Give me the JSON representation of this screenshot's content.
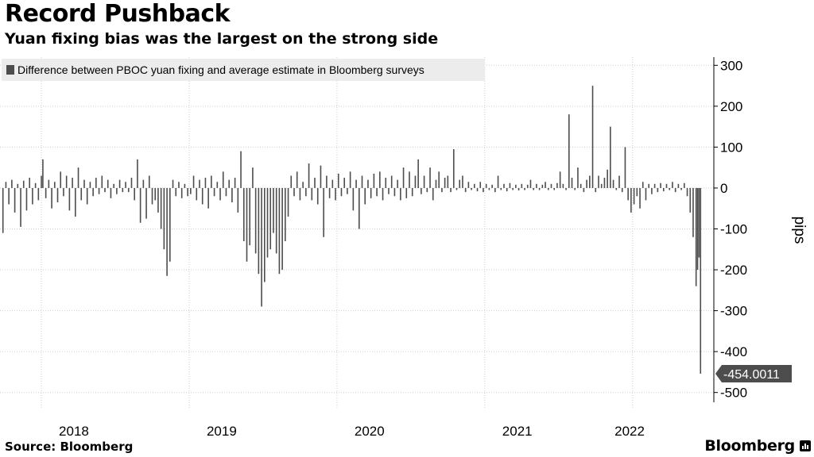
{
  "header": {
    "title": "Record Pushback",
    "subtitle": "Yuan fixing bias was the largest on the strong side"
  },
  "footer": {
    "source": "Source: Bloomberg",
    "brand": "Bloomberg"
  },
  "chart_data": {
    "type": "bar",
    "title": "Record Pushback",
    "subtitle": "Yuan fixing bias was the largest on the strong side",
    "xlabel": "",
    "ylabel": "pips",
    "ylim": [
      -520,
      320
    ],
    "yticks": [
      300,
      200,
      100,
      0,
      -100,
      -200,
      -300,
      -400,
      -500
    ],
    "xlim": [
      2017.72,
      2022.55
    ],
    "xticks": [
      {
        "label": "2018",
        "value": 2018.0
      },
      {
        "label": "2019",
        "value": 2019.0
      },
      {
        "label": "2020",
        "value": 2020.0
      },
      {
        "label": "2021",
        "value": 2021.0
      },
      {
        "label": "2022",
        "value": 2022.0
      }
    ],
    "legend": {
      "position": "top-left",
      "entries": [
        "Difference between PBOC yuan fixing and average estimate in Bloomberg surveys"
      ]
    },
    "last_value_label": "-454.0011",
    "grid": true,
    "series": [
      {
        "name": "Difference between PBOC yuan fixing and average estimate in Bloomberg surveys",
        "color": "#4d4d4d",
        "points": [
          [
            2017.74,
            -110
          ],
          [
            2017.76,
            15
          ],
          [
            2017.78,
            -40
          ],
          [
            2017.8,
            20
          ],
          [
            2017.82,
            -60
          ],
          [
            2017.84,
            10
          ],
          [
            2017.86,
            -95
          ],
          [
            2017.88,
            18
          ],
          [
            2017.9,
            -55
          ],
          [
            2017.92,
            25
          ],
          [
            2017.94,
            -40
          ],
          [
            2017.96,
            12
          ],
          [
            2017.98,
            -30
          ],
          [
            2018.0,
            30
          ],
          [
            2018.01,
            70
          ],
          [
            2018.03,
            -25
          ],
          [
            2018.05,
            20
          ],
          [
            2018.07,
            -50
          ],
          [
            2018.09,
            15
          ],
          [
            2018.11,
            -35
          ],
          [
            2018.13,
            40
          ],
          [
            2018.15,
            -20
          ],
          [
            2018.17,
            30
          ],
          [
            2018.19,
            -55
          ],
          [
            2018.21,
            25
          ],
          [
            2018.23,
            -70
          ],
          [
            2018.25,
            50
          ],
          [
            2018.27,
            -30
          ],
          [
            2018.29,
            20
          ],
          [
            2018.31,
            -40
          ],
          [
            2018.33,
            15
          ],
          [
            2018.35,
            -20
          ],
          [
            2018.37,
            25
          ],
          [
            2018.39,
            -15
          ],
          [
            2018.41,
            30
          ],
          [
            2018.43,
            -10
          ],
          [
            2018.45,
            20
          ],
          [
            2018.47,
            -25
          ],
          [
            2018.49,
            10
          ],
          [
            2018.51,
            -15
          ],
          [
            2018.53,
            20
          ],
          [
            2018.55,
            -10
          ],
          [
            2018.57,
            15
          ],
          [
            2018.59,
            -10
          ],
          [
            2018.61,
            25
          ],
          [
            2018.63,
            -30
          ],
          [
            2018.65,
            70
          ],
          [
            2018.67,
            -85
          ],
          [
            2018.69,
            20
          ],
          [
            2018.71,
            -75
          ],
          [
            2018.73,
            30
          ],
          [
            2018.75,
            -40
          ],
          [
            2018.77,
            -30
          ],
          [
            2018.79,
            -60
          ],
          [
            2018.81,
            -100
          ],
          [
            2018.83,
            -150
          ],
          [
            2018.85,
            -215
          ],
          [
            2018.87,
            -180
          ],
          [
            2018.89,
            20
          ],
          [
            2018.91,
            -20
          ],
          [
            2018.93,
            15
          ],
          [
            2018.95,
            -25
          ],
          [
            2018.97,
            10
          ],
          [
            2018.99,
            -20
          ],
          [
            2019.01,
            -15
          ],
          [
            2019.03,
            30
          ],
          [
            2019.05,
            -30
          ],
          [
            2019.07,
            20
          ],
          [
            2019.09,
            -40
          ],
          [
            2019.11,
            25
          ],
          [
            2019.13,
            -50
          ],
          [
            2019.15,
            30
          ],
          [
            2019.17,
            -20
          ],
          [
            2019.19,
            15
          ],
          [
            2019.21,
            -30
          ],
          [
            2019.23,
            40
          ],
          [
            2019.25,
            -20
          ],
          [
            2019.27,
            20
          ],
          [
            2019.29,
            -35
          ],
          [
            2019.31,
            25
          ],
          [
            2019.33,
            -60
          ],
          [
            2019.35,
            90
          ],
          [
            2019.37,
            -130
          ],
          [
            2019.39,
            -180
          ],
          [
            2019.41,
            -140
          ],
          [
            2019.43,
            50
          ],
          [
            2019.45,
            -160
          ],
          [
            2019.47,
            -210
          ],
          [
            2019.49,
            -290
          ],
          [
            2019.51,
            -230
          ],
          [
            2019.53,
            -170
          ],
          [
            2019.55,
            -150
          ],
          [
            2019.57,
            -110
          ],
          [
            2019.59,
            -160
          ],
          [
            2019.61,
            -210
          ],
          [
            2019.63,
            -200
          ],
          [
            2019.65,
            -130
          ],
          [
            2019.67,
            -70
          ],
          [
            2019.69,
            30
          ],
          [
            2019.71,
            -20
          ],
          [
            2019.73,
            40
          ],
          [
            2019.75,
            -30
          ],
          [
            2019.77,
            15
          ],
          [
            2019.79,
            -20
          ],
          [
            2019.81,
            60
          ],
          [
            2019.83,
            -30
          ],
          [
            2019.85,
            25
          ],
          [
            2019.87,
            -40
          ],
          [
            2019.89,
            55
          ],
          [
            2019.91,
            -120
          ],
          [
            2019.93,
            30
          ],
          [
            2019.95,
            -25
          ],
          [
            2019.97,
            20
          ],
          [
            2019.99,
            -30
          ],
          [
            2020.01,
            35
          ],
          [
            2020.03,
            -20
          ],
          [
            2020.05,
            25
          ],
          [
            2020.07,
            -15
          ],
          [
            2020.09,
            40
          ],
          [
            2020.11,
            -55
          ],
          [
            2020.13,
            20
          ],
          [
            2020.15,
            -100
          ],
          [
            2020.17,
            30
          ],
          [
            2020.19,
            -40
          ],
          [
            2020.21,
            20
          ],
          [
            2020.23,
            -25
          ],
          [
            2020.25,
            35
          ],
          [
            2020.27,
            -20
          ],
          [
            2020.29,
            40
          ],
          [
            2020.31,
            -30
          ],
          [
            2020.33,
            25
          ],
          [
            2020.35,
            -15
          ],
          [
            2020.37,
            30
          ],
          [
            2020.39,
            -20
          ],
          [
            2020.41,
            20
          ],
          [
            2020.43,
            -30
          ],
          [
            2020.45,
            50
          ],
          [
            2020.47,
            -25
          ],
          [
            2020.49,
            40
          ],
          [
            2020.51,
            -20
          ],
          [
            2020.53,
            30
          ],
          [
            2020.55,
            70
          ],
          [
            2020.57,
            -15
          ],
          [
            2020.59,
            30
          ],
          [
            2020.61,
            -10
          ],
          [
            2020.63,
            50
          ],
          [
            2020.65,
            -30
          ],
          [
            2020.67,
            20
          ],
          [
            2020.69,
            40
          ],
          [
            2020.71,
            -10
          ],
          [
            2020.73,
            25
          ],
          [
            2020.75,
            30
          ],
          [
            2020.77,
            -10
          ],
          [
            2020.79,
            95
          ],
          [
            2020.81,
            -5
          ],
          [
            2020.83,
            20
          ],
          [
            2020.85,
            30
          ],
          [
            2020.87,
            -10
          ],
          [
            2020.89,
            15
          ],
          [
            2020.91,
            -5
          ],
          [
            2020.93,
            10
          ],
          [
            2020.95,
            -8
          ],
          [
            2020.97,
            15
          ],
          [
            2020.99,
            -10
          ],
          [
            2021.01,
            10
          ],
          [
            2021.03,
            -5
          ],
          [
            2021.05,
            8
          ],
          [
            2021.07,
            -10
          ],
          [
            2021.09,
            30
          ],
          [
            2021.11,
            -5
          ],
          [
            2021.13,
            10
          ],
          [
            2021.15,
            -8
          ],
          [
            2021.17,
            12
          ],
          [
            2021.19,
            -5
          ],
          [
            2021.21,
            8
          ],
          [
            2021.23,
            -6
          ],
          [
            2021.25,
            10
          ],
          [
            2021.27,
            -5
          ],
          [
            2021.29,
            8
          ],
          [
            2021.31,
            20
          ],
          [
            2021.33,
            -5
          ],
          [
            2021.35,
            10
          ],
          [
            2021.37,
            -5
          ],
          [
            2021.39,
            8
          ],
          [
            2021.41,
            15
          ],
          [
            2021.43,
            -5
          ],
          [
            2021.45,
            10
          ],
          [
            2021.47,
            -5
          ],
          [
            2021.49,
            12
          ],
          [
            2021.51,
            40
          ],
          [
            2021.53,
            10
          ],
          [
            2021.55,
            -5
          ],
          [
            2021.57,
            180
          ],
          [
            2021.59,
            25
          ],
          [
            2021.61,
            -5
          ],
          [
            2021.63,
            50
          ],
          [
            2021.65,
            10
          ],
          [
            2021.67,
            -10
          ],
          [
            2021.69,
            20
          ],
          [
            2021.71,
            30
          ],
          [
            2021.73,
            250
          ],
          [
            2021.75,
            -10
          ],
          [
            2021.77,
            30
          ],
          [
            2021.79,
            10
          ],
          [
            2021.81,
            25
          ],
          [
            2021.83,
            45
          ],
          [
            2021.85,
            150
          ],
          [
            2021.87,
            20
          ],
          [
            2021.89,
            -5
          ],
          [
            2021.91,
            30
          ],
          [
            2021.93,
            -10
          ],
          [
            2021.95,
            100
          ],
          [
            2021.97,
            -30
          ],
          [
            2021.99,
            -60
          ],
          [
            2022.01,
            -40
          ],
          [
            2022.03,
            -20
          ],
          [
            2022.05,
            -50
          ],
          [
            2022.07,
            15
          ],
          [
            2022.09,
            -30
          ],
          [
            2022.11,
            10
          ],
          [
            2022.13,
            -15
          ],
          [
            2022.15,
            10
          ],
          [
            2022.17,
            -10
          ],
          [
            2022.19,
            12
          ],
          [
            2022.21,
            -8
          ],
          [
            2022.23,
            10
          ],
          [
            2022.25,
            -5
          ],
          [
            2022.27,
            15
          ],
          [
            2022.29,
            -10
          ],
          [
            2022.31,
            10
          ],
          [
            2022.33,
            -5
          ],
          [
            2022.35,
            12
          ],
          [
            2022.37,
            -20
          ],
          [
            2022.39,
            -60
          ],
          [
            2022.41,
            -120
          ],
          [
            2022.43,
            -240
          ],
          [
            2022.44,
            -200
          ],
          [
            2022.45,
            -170
          ],
          [
            2022.46,
            -454.0011
          ]
        ]
      }
    ]
  }
}
